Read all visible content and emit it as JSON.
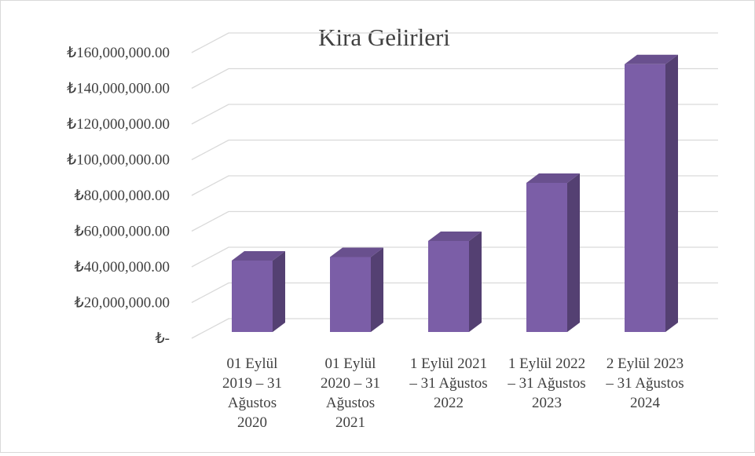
{
  "chart_data": {
    "type": "bar3d",
    "title": "Kira Gelirleri",
    "categories": [
      "01 Eylül 2019 – 31 Ağustos 2020",
      "01 Eylül 2020 – 31 Ağustos 2021",
      "1 Eylül 2021 – 31 Ağustos 2022",
      "1 Eylül 2022 – 31 Ağustos 2023",
      "2 Eylül 2023 – 31 Ağustos 2024"
    ],
    "values": [
      40000000,
      42000000,
      51000000,
      83500000,
      150000000
    ],
    "color": "#7b5ea7",
    "ylim": [
      0,
      160000000
    ],
    "yticks": [
      {
        "value": 0,
        "label": "₺-"
      },
      {
        "value": 20000000,
        "label": "₺20,000,000.00"
      },
      {
        "value": 40000000,
        "label": "₺40,000,000.00"
      },
      {
        "value": 60000000,
        "label": "₺60,000,000.00"
      },
      {
        "value": 80000000,
        "label": "₺80,000,000.00"
      },
      {
        "value": 100000000,
        "label": "₺100,000,000.00"
      },
      {
        "value": 120000000,
        "label": "₺120,000,000.00"
      },
      {
        "value": 140000000,
        "label": "₺140,000,000.00"
      },
      {
        "value": 160000000,
        "label": "₺160,000,000.00"
      }
    ],
    "grid": true
  }
}
